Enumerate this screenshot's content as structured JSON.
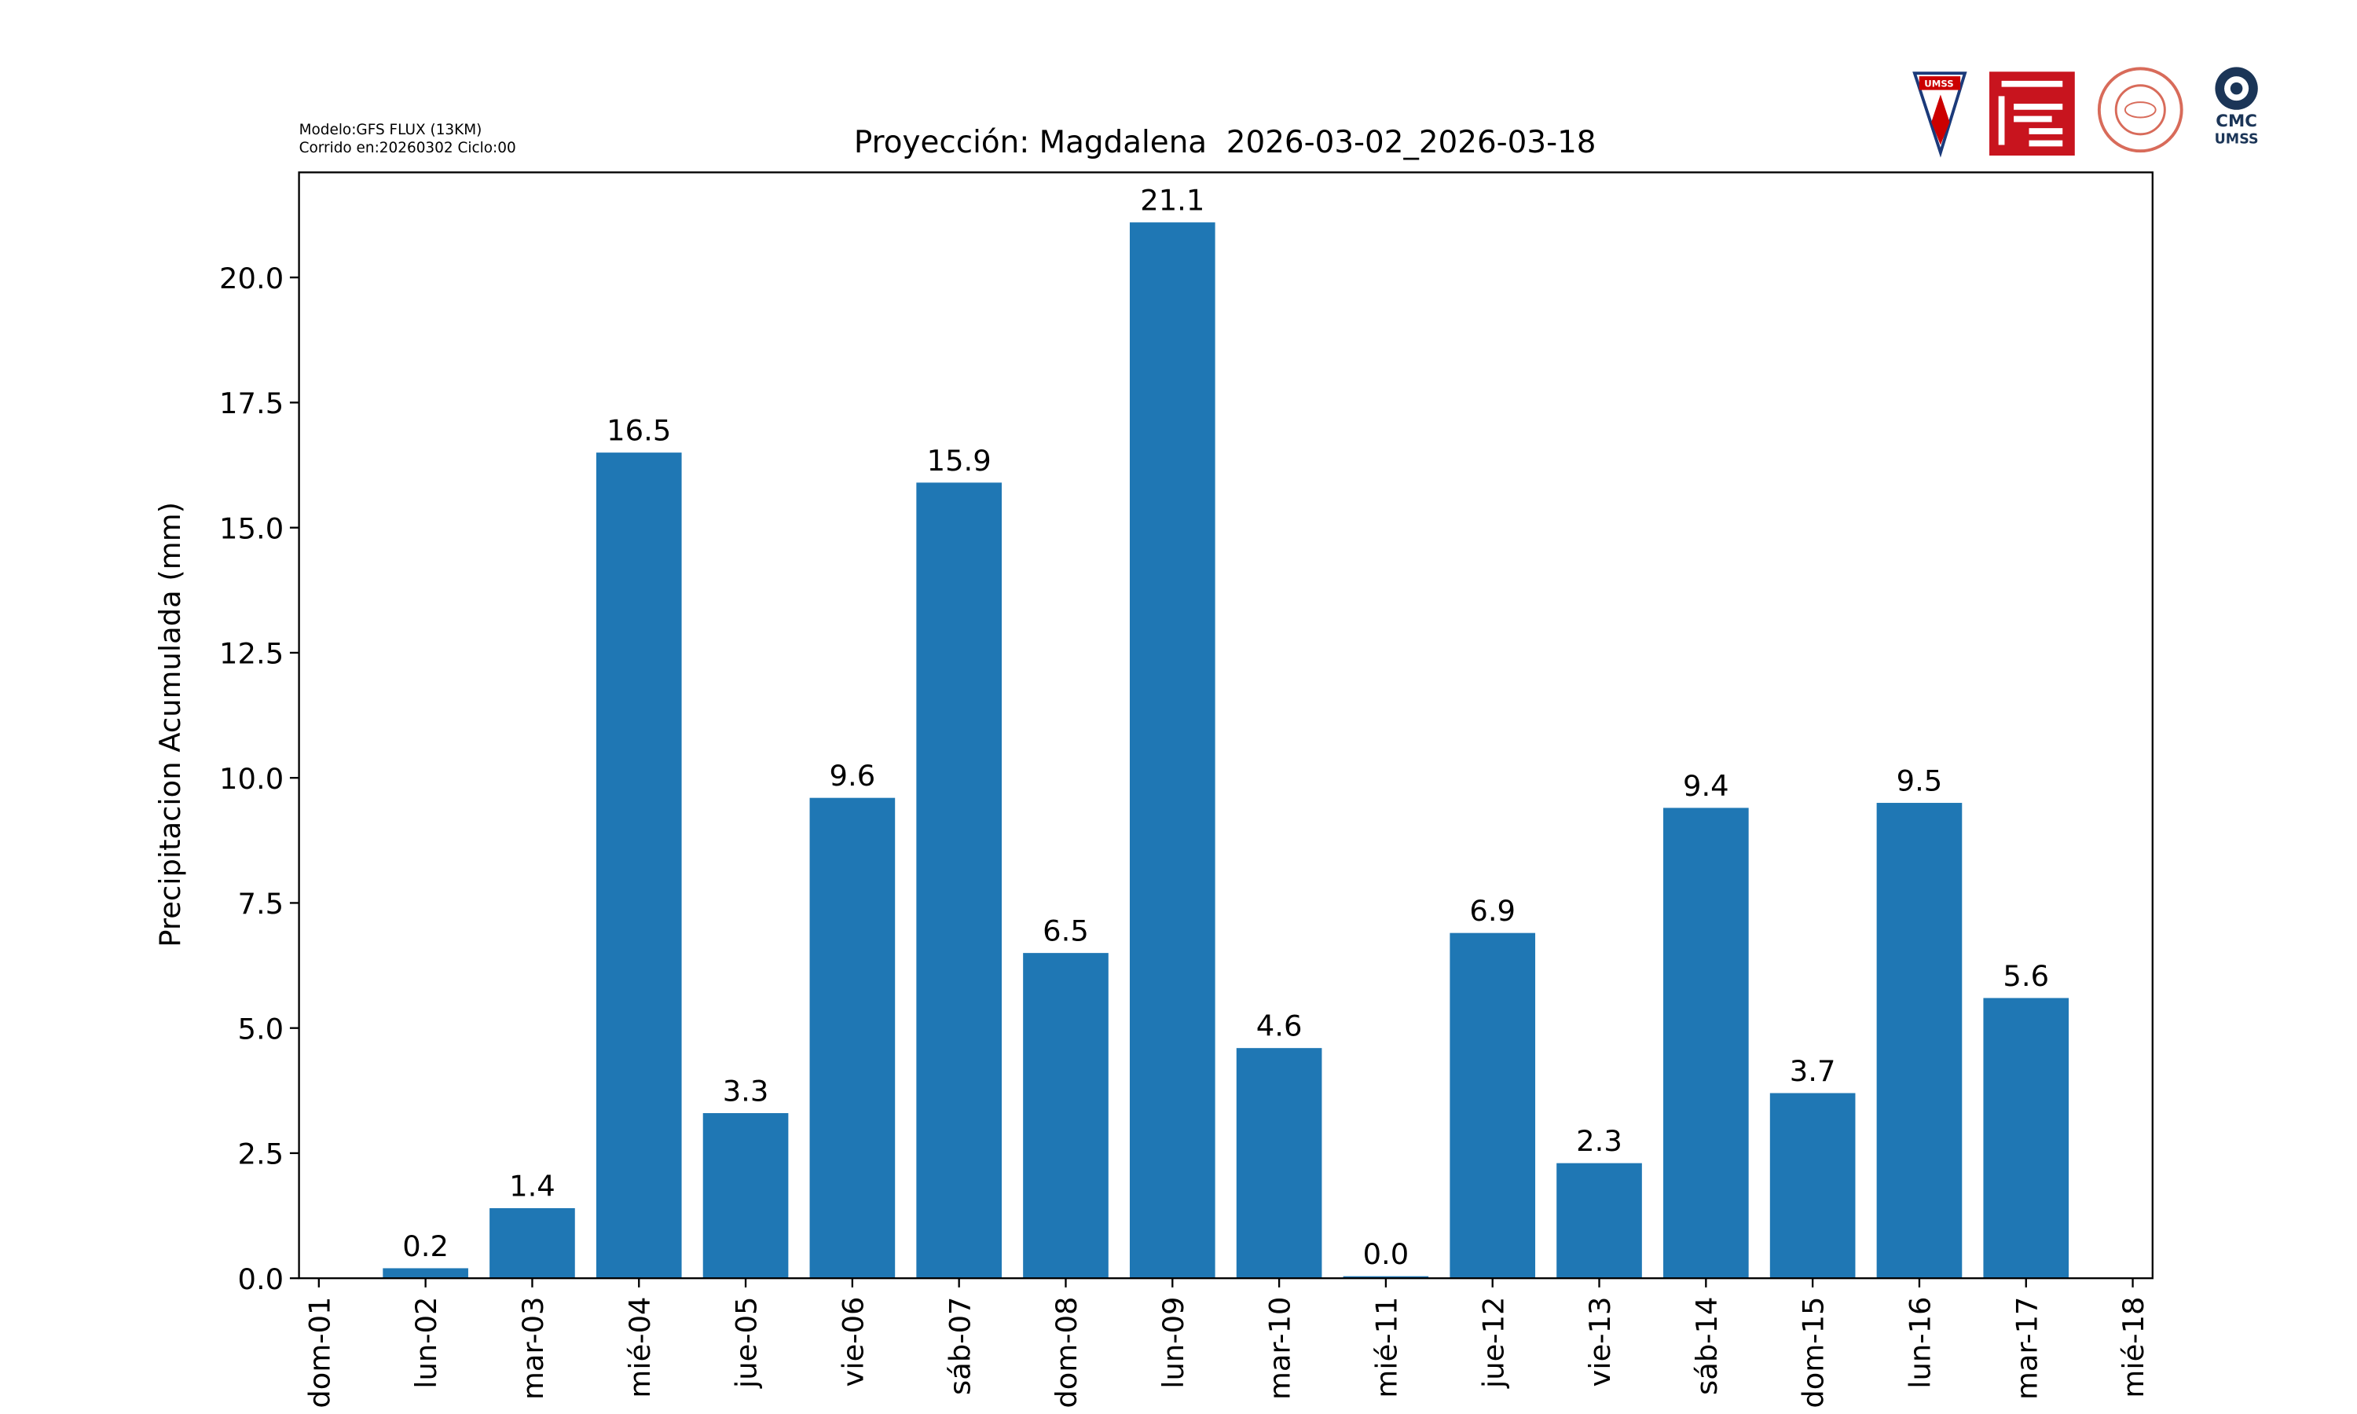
{
  "chart_data": {
    "type": "bar",
    "title": "Proyección: Magdalena  2026-03-02_2026-03-18",
    "model_info": [
      "Modelo:GFS FLUX (13KM)",
      "Corrido en:20260302 Ciclo:00"
    ],
    "logo_text": [
      "UMSS",
      "CMC",
      "UMSS"
    ],
    "y_label": "Precipitacion Acumulada (mm)",
    "categories": [
      "dom-01",
      "lun-02",
      "mar-03",
      "mié-04",
      "jue-05",
      "vie-06",
      "sáb-07",
      "dom-08",
      "lun-09",
      "mar-10",
      "mié-11",
      "jue-12",
      "vie-13",
      "sáb-14",
      "dom-15",
      "lun-16",
      "mar-17",
      "mié-18"
    ],
    "values": [
      null,
      0.2,
      1.4,
      16.5,
      3.3,
      9.6,
      15.9,
      6.5,
      21.1,
      4.6,
      0.04,
      6.9,
      2.3,
      9.4,
      3.7,
      9.5,
      5.6,
      null
    ],
    "value_labels": [
      null,
      "0.2",
      "1.4",
      "16.5",
      "3.3",
      "9.6",
      "15.9",
      "6.5",
      "21.1",
      "4.6",
      "0.0",
      "6.9",
      "2.3",
      "9.4",
      "3.7",
      "9.5",
      "5.6",
      null
    ],
    "color": "#1f77b4",
    "ylim": [
      0,
      22.1
    ],
    "yticks": [
      {
        "value": 0,
        "label": "0.0"
      },
      2.5,
      {
        "value": 5,
        "label": "5.0"
      },
      7.5,
      {
        "value": 10,
        "label": "10.0"
      },
      12.5,
      {
        "value": 15,
        "label": "15.0"
      },
      17.5,
      {
        "value": 20,
        "label": "20.0"
      }
    ],
    "grid": false
  }
}
